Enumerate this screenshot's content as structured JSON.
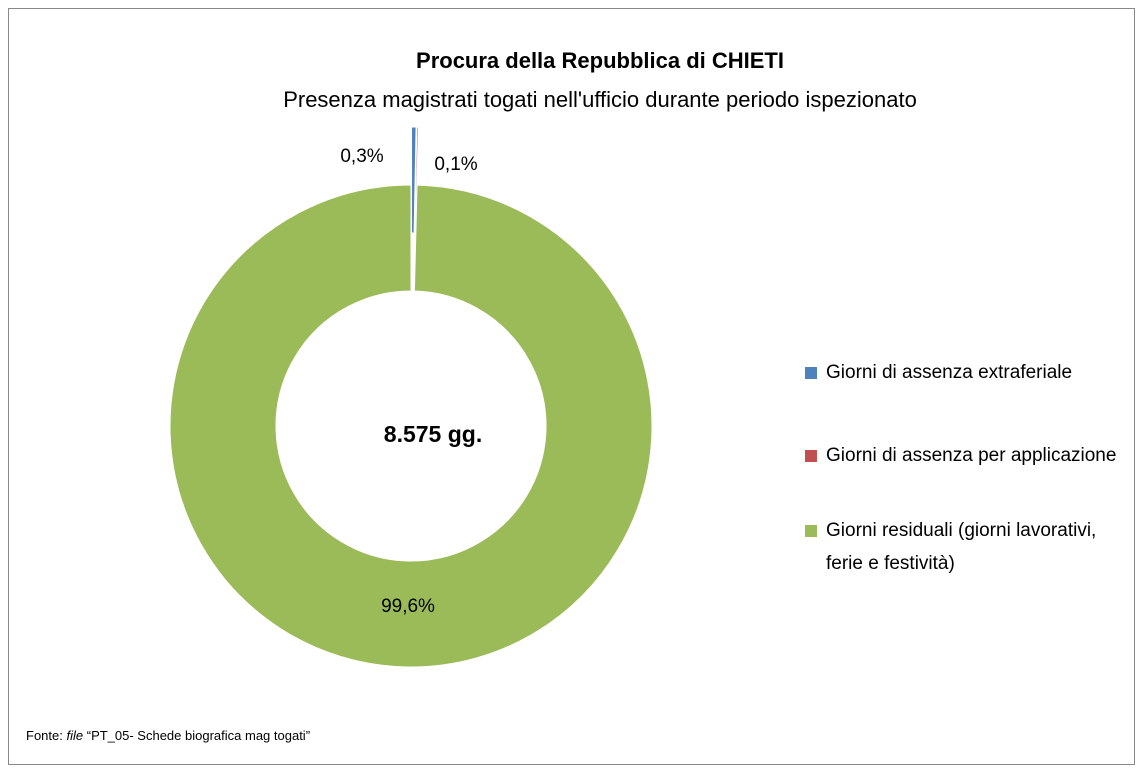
{
  "chart_data": {
    "type": "donut",
    "title": "Procura della Repubblica di CHIETI",
    "subtitle": "Presenza magistrati togati nell'ufficio durante periodo ispezionato",
    "center_label": "8.575 gg.",
    "categories": [
      "Giorni di assenza extraferiale",
      "Giorni di assenza per applicazione",
      "Giorni residuali (giorni lavorativi, ferie e festività)"
    ],
    "values": [
      0.3,
      0.1,
      99.6
    ],
    "value_labels": [
      "0,3%",
      "0,1%",
      "99,6%"
    ],
    "colors": [
      "#4f81bd",
      "#c0504d",
      "#9bbb59"
    ],
    "legend": "right",
    "source": {
      "prefix": "Fonte:",
      "emphasis": "file",
      "text": "“PT_05- Schede biografica mag togati”"
    }
  }
}
